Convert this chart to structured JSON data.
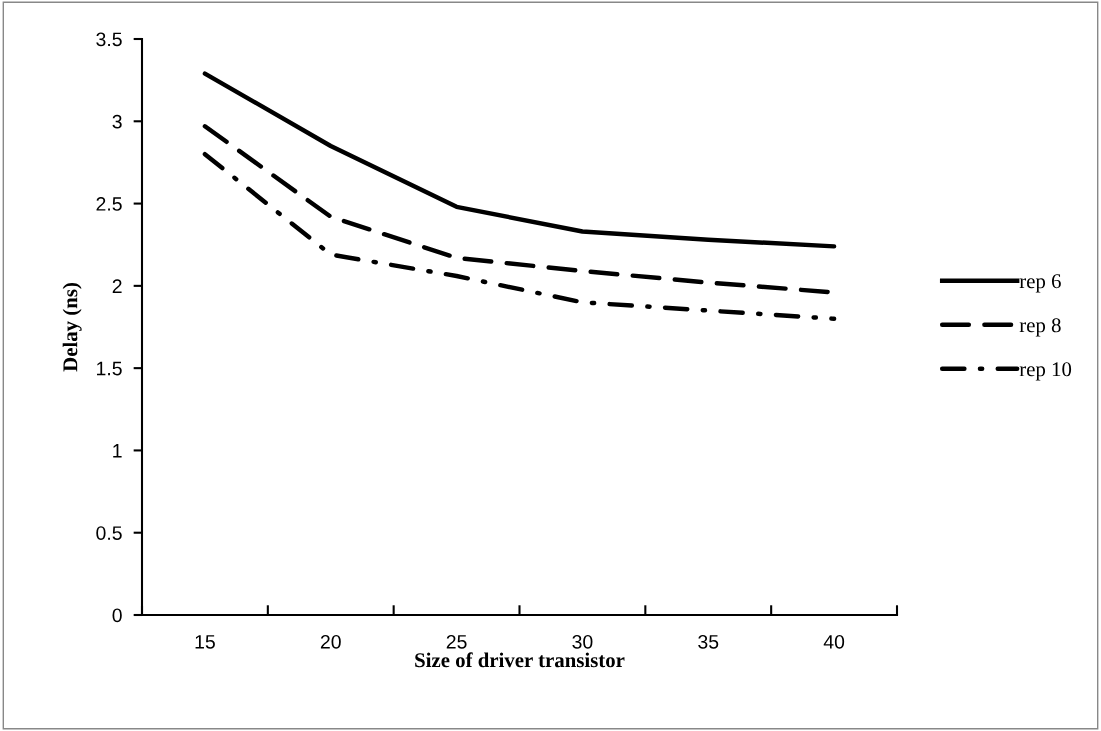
{
  "chart_data": {
    "type": "line",
    "xlabel": "Size of driver transistor",
    "ylabel": "Delay (ns)",
    "categories": [
      "15",
      "20",
      "25",
      "30",
      "35",
      "40"
    ],
    "series": [
      {
        "name": "rep 6",
        "color": "#000000",
        "line_style": "solid",
        "values": [
          3.29,
          2.85,
          2.48,
          2.33,
          2.28,
          2.24
        ]
      },
      {
        "name": "rep 8",
        "color": "#000000",
        "line_style": "dashed",
        "values": [
          2.97,
          2.42,
          2.17,
          2.09,
          2.02,
          1.96
        ]
      },
      {
        "name": "rep 10",
        "color": "#000000",
        "line_style": "dashdot",
        "values": [
          2.8,
          2.19,
          2.06,
          1.9,
          1.85,
          1.8
        ]
      }
    ],
    "ylim": [
      0,
      3.5
    ],
    "yticks": [
      0,
      0.5,
      1,
      1.5,
      2,
      2.5,
      3,
      3.5
    ],
    "grid": false,
    "legend": "right",
    "marker": "none"
  }
}
